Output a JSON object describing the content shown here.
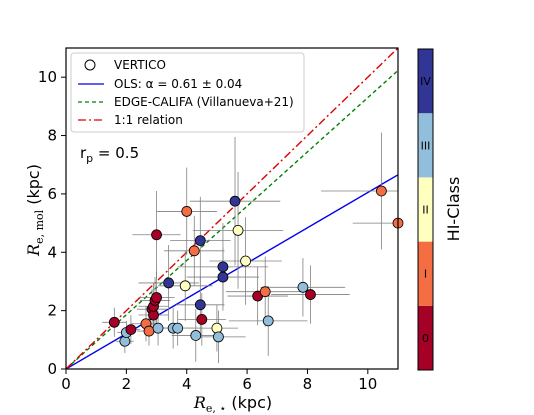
{
  "chart_data": {
    "type": "scatter",
    "xlabel": {
      "main": "R",
      "sub": "e, ⋆",
      "unit": " (kpc)"
    },
    "ylabel": {
      "main": "R",
      "sub": "e, mol",
      "unit": " (kpc)"
    },
    "xlim": [
      0,
      11
    ],
    "ylim": [
      0,
      11
    ],
    "xticks": [
      0,
      2,
      4,
      6,
      8,
      10
    ],
    "yticks": [
      0,
      2,
      4,
      6,
      8,
      10
    ],
    "grid": false,
    "legend_position": "top-left",
    "annotation": {
      "main": "r",
      "sub": "p",
      "rest": " = 0.5"
    },
    "legend": [
      {
        "label": "VERTICO",
        "kind": "marker"
      },
      {
        "label": "OLS: α = 0.61 ± 0.04",
        "kind": "line",
        "color": "#0000ee",
        "dash": "none"
      },
      {
        "label": "EDGE-CALIFA (Villanueva+21)",
        "kind": "line",
        "color": "#008000",
        "dash": "4,3"
      },
      {
        "label": "1:1 relation",
        "kind": "line",
        "color": "#dd0000",
        "dash": "8,3,2,3"
      }
    ],
    "lines": [
      {
        "name": "OLS",
        "slope": 0.605,
        "intercept": 0,
        "color": "#0000ee",
        "dash": "none"
      },
      {
        "name": "EDGE-CALIFA",
        "slope": 0.93,
        "intercept": 0,
        "color": "#008000",
        "dash": "4,3"
      },
      {
        "name": "1:1",
        "slope": 1.0,
        "intercept": 0,
        "color": "#dd0000",
        "dash": "8,3,2,3"
      }
    ],
    "colorbar": {
      "label": "HI-Class",
      "classes": [
        {
          "label": "0",
          "color": "#a50026",
          "text_color": "#000000"
        },
        {
          "label": "I",
          "color": "#f46d43",
          "text_color": "#000000"
        },
        {
          "label": "II",
          "color": "#ffffbf",
          "text_color": "#000000"
        },
        {
          "label": "III",
          "color": "#91bfdb",
          "text_color": "#000000"
        },
        {
          "label": "IV",
          "color": "#313695",
          "text_color": "#000000"
        }
      ]
    },
    "points": [
      {
        "x": 1.6,
        "y": 1.6,
        "xerr": 0.4,
        "yerr": 0.5,
        "cls": 0
      },
      {
        "x": 1.95,
        "y": 0.95,
        "xerr": 0.3,
        "yerr": 0.4,
        "cls": 3
      },
      {
        "x": 2.0,
        "y": 1.25,
        "xerr": 0.3,
        "yerr": 0.4,
        "cls": 3
      },
      {
        "x": 2.15,
        "y": 1.35,
        "xerr": 0.3,
        "yerr": 0.5,
        "cls": 0
      },
      {
        "x": 2.65,
        "y": 1.55,
        "xerr": 0.5,
        "yerr": 0.6,
        "cls": 1
      },
      {
        "x": 2.75,
        "y": 1.3,
        "xerr": 0.4,
        "yerr": 0.5,
        "cls": 1
      },
      {
        "x": 2.85,
        "y": 2.05,
        "xerr": 0.5,
        "yerr": 0.7,
        "cls": 0
      },
      {
        "x": 2.9,
        "y": 1.85,
        "xerr": 0.5,
        "yerr": 0.6,
        "cls": 0
      },
      {
        "x": 2.9,
        "y": 2.15,
        "xerr": 0.5,
        "yerr": 0.8,
        "cls": 0
      },
      {
        "x": 2.95,
        "y": 2.35,
        "xerr": 0.5,
        "yerr": 0.8,
        "cls": 0
      },
      {
        "x": 3.0,
        "y": 2.45,
        "xerr": 0.6,
        "yerr": 0.9,
        "cls": 0
      },
      {
        "x": 3.0,
        "y": 4.6,
        "xerr": 0.8,
        "yerr": 1.5,
        "cls": 0
      },
      {
        "x": 3.05,
        "y": 1.4,
        "xerr": 0.5,
        "yerr": 0.6,
        "cls": 3
      },
      {
        "x": 3.4,
        "y": 2.95,
        "xerr": 1.0,
        "yerr": 1.3,
        "cls": 4
      },
      {
        "x": 3.55,
        "y": 1.4,
        "xerr": 0.8,
        "yerr": 0.7,
        "cls": 3
      },
      {
        "x": 3.7,
        "y": 1.4,
        "xerr": 0.6,
        "yerr": 0.6,
        "cls": 3
      },
      {
        "x": 3.95,
        "y": 2.85,
        "xerr": 0.9,
        "yerr": 1.2,
        "cls": 2
      },
      {
        "x": 4.0,
        "y": 5.4,
        "xerr": 1.0,
        "yerr": 1.5,
        "cls": 1
      },
      {
        "x": 4.25,
        "y": 4.05,
        "xerr": 1.0,
        "yerr": 1.2,
        "cls": 1
      },
      {
        "x": 4.3,
        "y": 1.15,
        "xerr": 0.8,
        "yerr": 0.9,
        "cls": 3
      },
      {
        "x": 4.45,
        "y": 4.4,
        "xerr": 1.0,
        "yerr": 1.5,
        "cls": 4
      },
      {
        "x": 4.45,
        "y": 2.2,
        "xerr": 0.8,
        "yerr": 1.0,
        "cls": 4
      },
      {
        "x": 4.5,
        "y": 1.7,
        "xerr": 0.8,
        "yerr": 0.9,
        "cls": 0
      },
      {
        "x": 5.0,
        "y": 1.4,
        "xerr": 0.7,
        "yerr": 0.8,
        "cls": 2
      },
      {
        "x": 5.05,
        "y": 1.1,
        "xerr": 0.9,
        "yerr": 0.9,
        "cls": 3
      },
      {
        "x": 5.2,
        "y": 3.5,
        "xerr": 1.5,
        "yerr": 1.5,
        "cls": 4
      },
      {
        "x": 5.2,
        "y": 3.15,
        "xerr": 1.2,
        "yerr": 1.0,
        "cls": 4
      },
      {
        "x": 5.6,
        "y": 5.75,
        "xerr": 1.5,
        "yerr": 2.2,
        "cls": 4
      },
      {
        "x": 5.7,
        "y": 4.75,
        "xerr": 1.5,
        "yerr": 2.0,
        "cls": 2
      },
      {
        "x": 5.95,
        "y": 3.7,
        "xerr": 1.2,
        "yerr": 1.5,
        "cls": 2
      },
      {
        "x": 6.35,
        "y": 2.5,
        "xerr": 1.0,
        "yerr": 1.0,
        "cls": 0
      },
      {
        "x": 6.6,
        "y": 2.65,
        "xerr": 1.3,
        "yerr": 1.2,
        "cls": 1
      },
      {
        "x": 6.7,
        "y": 1.65,
        "xerr": 1.3,
        "yerr": 1.2,
        "cls": 3
      },
      {
        "x": 7.85,
        "y": 2.8,
        "xerr": 1.4,
        "yerr": 1.0,
        "cls": 3
      },
      {
        "x": 8.1,
        "y": 2.55,
        "xerr": 1.3,
        "yerr": 1.0,
        "cls": 0
      },
      {
        "x": 10.45,
        "y": 6.1,
        "xerr": 2.0,
        "yerr": 2.0,
        "cls": 1
      },
      {
        "x": 11.0,
        "y": 5.0,
        "xerr": 1.5,
        "yerr": 1.8,
        "cls": 1
      }
    ]
  }
}
